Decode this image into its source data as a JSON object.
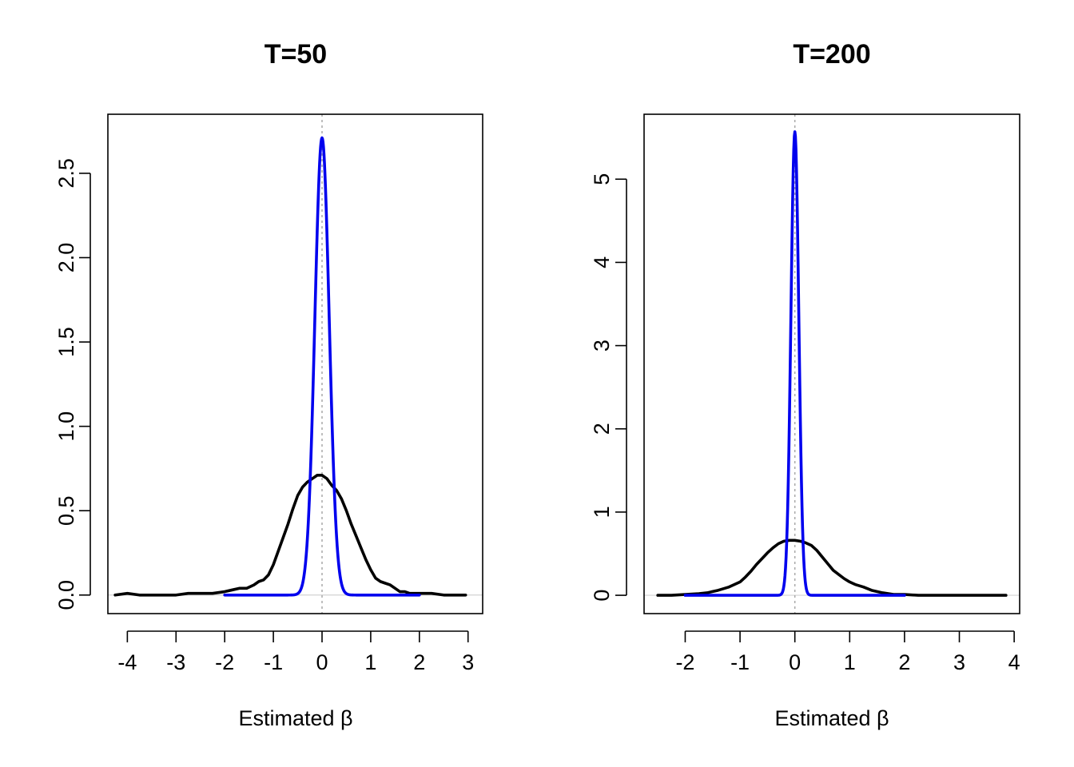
{
  "chart_data": [
    {
      "type": "line",
      "title": "T=50",
      "xlabel": "Estimated β",
      "ylabel": "",
      "xlim": [
        -4.4,
        3.3
      ],
      "ylim": [
        -0.11,
        2.85
      ],
      "x_ticks": [
        -4,
        -3,
        -2,
        -1,
        0,
        1,
        2,
        3
      ],
      "y_ticks": [
        0.0,
        0.5,
        1.0,
        1.5,
        2.0,
        2.5
      ],
      "x_tick_labels": [
        "-4",
        "-3",
        "-2",
        "-1",
        "0",
        "1",
        "2",
        "3"
      ],
      "y_tick_labels": [
        "0.0",
        "0.5",
        "1.0",
        "1.5",
        "2.0",
        "2.5"
      ],
      "reference_vline": 0,
      "reference_hline": 0,
      "series": [
        {
          "color": "#000000",
          "x": [
            -4.25,
            -4.0,
            -3.75,
            -3.5,
            -3.0,
            -2.75,
            -2.5,
            -2.25,
            -2.0,
            -1.85,
            -1.7,
            -1.55,
            -1.4,
            -1.3,
            -1.2,
            -1.1,
            -1.0,
            -0.9,
            -0.8,
            -0.7,
            -0.6,
            -0.5,
            -0.4,
            -0.3,
            -0.2,
            -0.1,
            0.0,
            0.1,
            0.2,
            0.3,
            0.4,
            0.5,
            0.6,
            0.7,
            0.8,
            0.9,
            1.0,
            1.1,
            1.2,
            1.3,
            1.4,
            1.5,
            1.6,
            1.7,
            1.8,
            2.0,
            2.25,
            2.5,
            2.75,
            2.95
          ],
          "values": [
            0.0,
            0.01,
            0.0,
            0.0,
            0.0,
            0.01,
            0.01,
            0.01,
            0.02,
            0.03,
            0.04,
            0.04,
            0.06,
            0.08,
            0.09,
            0.12,
            0.18,
            0.26,
            0.34,
            0.42,
            0.51,
            0.59,
            0.64,
            0.67,
            0.69,
            0.71,
            0.71,
            0.69,
            0.65,
            0.62,
            0.57,
            0.5,
            0.42,
            0.35,
            0.28,
            0.21,
            0.15,
            0.1,
            0.08,
            0.07,
            0.06,
            0.04,
            0.02,
            0.02,
            0.01,
            0.01,
            0.01,
            0.0,
            0.0,
            0.0
          ]
        },
        {
          "color": "#0000ee",
          "density": "normal",
          "mean": 0,
          "peak": 2.71,
          "range": [
            -2.0,
            2.0
          ]
        }
      ]
    },
    {
      "type": "line",
      "title": "T=200",
      "xlabel": "Estimated β",
      "ylabel": "",
      "xlim": [
        -2.75,
        4.1
      ],
      "ylim": [
        -0.22,
        5.78
      ],
      "x_ticks": [
        -2,
        -1,
        0,
        1,
        2,
        3,
        4
      ],
      "y_ticks": [
        0,
        1,
        2,
        3,
        4,
        5
      ],
      "x_tick_labels": [
        "-2",
        "-1",
        "0",
        "1",
        "2",
        "3",
        "4"
      ],
      "y_tick_labels": [
        "0",
        "1",
        "2",
        "3",
        "4",
        "5"
      ],
      "reference_vline": 0,
      "reference_hline": 0,
      "series": [
        {
          "color": "#000000",
          "x": [
            -2.5,
            -2.25,
            -2.0,
            -1.75,
            -1.6,
            -1.4,
            -1.2,
            -1.0,
            -0.9,
            -0.8,
            -0.7,
            -0.6,
            -0.5,
            -0.4,
            -0.3,
            -0.2,
            -0.1,
            0.0,
            0.1,
            0.2,
            0.3,
            0.4,
            0.5,
            0.6,
            0.7,
            0.8,
            0.9,
            1.0,
            1.1,
            1.25,
            1.4,
            1.6,
            1.8,
            2.0,
            2.25,
            2.5,
            2.75,
            3.0,
            3.25,
            3.5,
            3.85
          ],
          "values": [
            0.0,
            0.0,
            0.01,
            0.02,
            0.03,
            0.06,
            0.1,
            0.16,
            0.22,
            0.29,
            0.37,
            0.44,
            0.51,
            0.57,
            0.62,
            0.65,
            0.66,
            0.66,
            0.65,
            0.63,
            0.6,
            0.54,
            0.46,
            0.38,
            0.3,
            0.25,
            0.2,
            0.16,
            0.13,
            0.1,
            0.06,
            0.03,
            0.01,
            0.01,
            0.0,
            0.0,
            0.0,
            0.0,
            0.0,
            0.0,
            0.0
          ]
        },
        {
          "color": "#0000ee",
          "density": "normal",
          "mean": 0,
          "peak": 5.57,
          "range": [
            -2.0,
            2.0
          ]
        }
      ]
    }
  ]
}
